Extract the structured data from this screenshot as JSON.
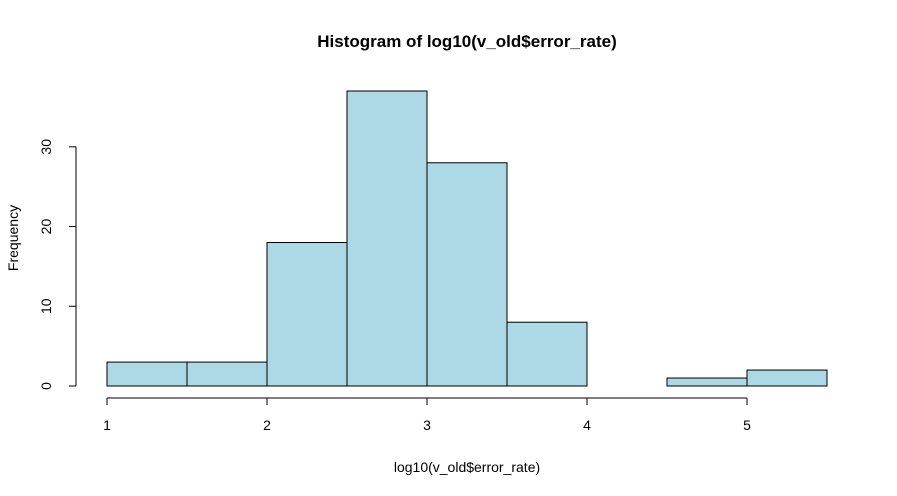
{
  "chart_data": {
    "type": "bar",
    "title": "Histogram of log10(v_old$error_rate)",
    "xlabel": "log10(v_old$error_rate)",
    "ylabel": "Frequency",
    "bins": [
      {
        "x0": 1.0,
        "x1": 1.5,
        "count": 3
      },
      {
        "x0": 1.5,
        "x1": 2.0,
        "count": 3
      },
      {
        "x0": 2.0,
        "x1": 2.5,
        "count": 18
      },
      {
        "x0": 2.5,
        "x1": 3.0,
        "count": 37
      },
      {
        "x0": 3.0,
        "x1": 3.5,
        "count": 28
      },
      {
        "x0": 3.5,
        "x1": 4.0,
        "count": 8
      },
      {
        "x0": 4.0,
        "x1": 4.5,
        "count": 0
      },
      {
        "x0": 4.5,
        "x1": 5.0,
        "count": 1
      },
      {
        "x0": 5.0,
        "x1": 5.5,
        "count": 2
      }
    ],
    "xticks": [
      1,
      2,
      3,
      4,
      5
    ],
    "yticks": [
      0,
      10,
      20,
      30
    ],
    "xlim": [
      1.0,
      5.5
    ],
    "ylim": [
      0,
      37
    ],
    "grid": false,
    "bar_fill": "#add8e6",
    "bar_edge": "#000000"
  }
}
